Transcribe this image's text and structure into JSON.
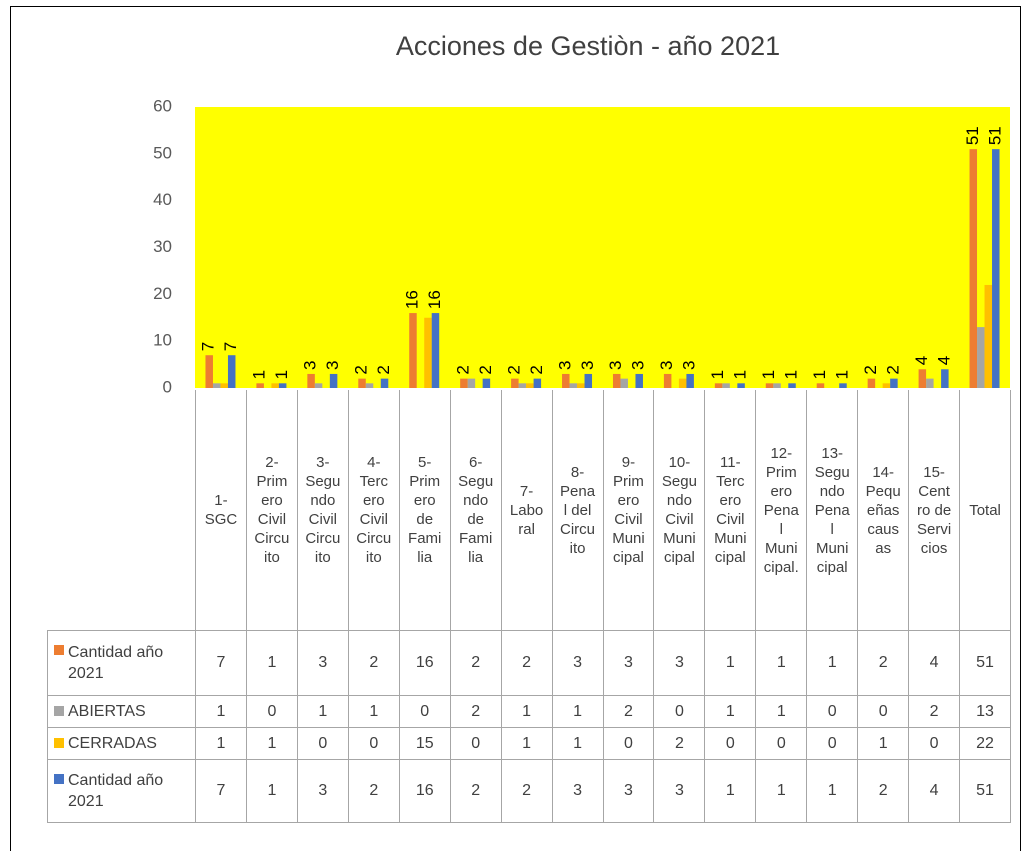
{
  "chart_data": {
    "type": "bar",
    "title": "Acciones de Gestiòn - año  2021",
    "categories": [
      "1-SGC",
      "2-Primero Civil Circuito",
      "3-Segundo Civil Circuito",
      "4-Tercero Civil Circuito",
      "5-Primero de Familia",
      "6-Segundo de Familia",
      "7-Laboral",
      "8-Penal del Circuito",
      "9-Primero Civil Municipal",
      "10-Segundo Civil Municipal",
      "11-Tercero Civil Municipal",
      "12-Primero Penal Municipal.",
      "13-Segundo Penal Municipal",
      "14-Pequeñas causas",
      "15-Centro de Servicios",
      "Total"
    ],
    "series": [
      {
        "name": "Cantidad año 2021",
        "color": "#ed7d31",
        "data_labels": true,
        "values": [
          7,
          1,
          3,
          2,
          16,
          2,
          2,
          3,
          3,
          3,
          1,
          1,
          1,
          2,
          4,
          51
        ]
      },
      {
        "name": "ABIERTAS",
        "color": "#a5a5a5",
        "data_labels": false,
        "values": [
          1,
          0,
          1,
          1,
          0,
          2,
          1,
          1,
          2,
          0,
          1,
          1,
          0,
          0,
          2,
          13
        ]
      },
      {
        "name": "CERRADAS",
        "color": "#ffc000",
        "data_labels": false,
        "values": [
          1,
          1,
          0,
          0,
          15,
          0,
          1,
          1,
          0,
          2,
          0,
          0,
          0,
          1,
          0,
          22
        ]
      },
      {
        "name": "Cantidad año 2021",
        "color": "#4472c4",
        "data_labels": true,
        "values": [
          7,
          1,
          3,
          2,
          16,
          2,
          2,
          3,
          3,
          3,
          1,
          1,
          1,
          2,
          4,
          51
        ]
      }
    ],
    "ylim": [
      0,
      60
    ],
    "yticks": [
      0,
      10,
      20,
      30,
      40,
      50,
      60
    ],
    "plot_background": "#ffff00"
  }
}
